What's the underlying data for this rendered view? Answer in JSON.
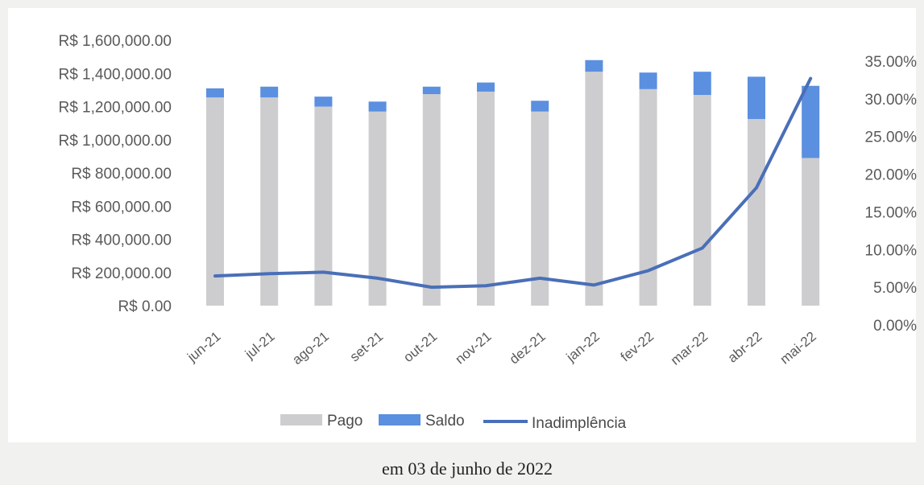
{
  "chart_data": {
    "type": "bar",
    "categories": [
      "jun-21",
      "jul-21",
      "ago-21",
      "set-21",
      "out-21",
      "nov-21",
      "dez-21",
      "jan-22",
      "fev-22",
      "mar-22",
      "abr-22",
      "mai-22"
    ],
    "series": [
      {
        "name": "Pago",
        "type": "bar",
        "axis": "left",
        "values": [
          1255000,
          1255000,
          1200000,
          1170000,
          1275000,
          1290000,
          1170000,
          1410000,
          1305000,
          1270000,
          1125000,
          890000
        ]
      },
      {
        "name": "Saldo",
        "type": "bar",
        "axis": "left",
        "values": [
          55000,
          65000,
          60000,
          60000,
          45000,
          55000,
          65000,
          70000,
          100000,
          140000,
          255000,
          435000
        ]
      },
      {
        "name": "Inadimplência",
        "type": "line",
        "axis": "right",
        "values": [
          0.065,
          0.068,
          0.07,
          0.062,
          0.05,
          0.052,
          0.062,
          0.053,
          0.072,
          0.102,
          0.182,
          0.327
        ]
      }
    ],
    "y_left_ticks": [
      "R$ 1,600,000.00",
      "R$ 1,400,000.00",
      "R$ 1,200,000.00",
      "R$ 1,000,000.00",
      "R$ 800,000.00",
      "R$ 600,000.00",
      "R$ 400,000.00",
      "R$ 200,000.00",
      "R$ 0.00"
    ],
    "y_right_ticks": [
      "35.00%",
      "30.00%",
      "25.00%",
      "20.00%",
      "15.00%",
      "10.00%",
      "5.00%",
      "0.00%"
    ],
    "ylim_left": [
      0,
      1600000
    ],
    "ylim_right": [
      0,
      0.35
    ],
    "colors": {
      "Pago": "#cdcdcf",
      "Saldo": "#5b8fe0",
      "Inadimplência": "#4a6fb8"
    },
    "legend_position": "bottom",
    "grid": false
  },
  "caption": "em 03 de junho de 2022"
}
